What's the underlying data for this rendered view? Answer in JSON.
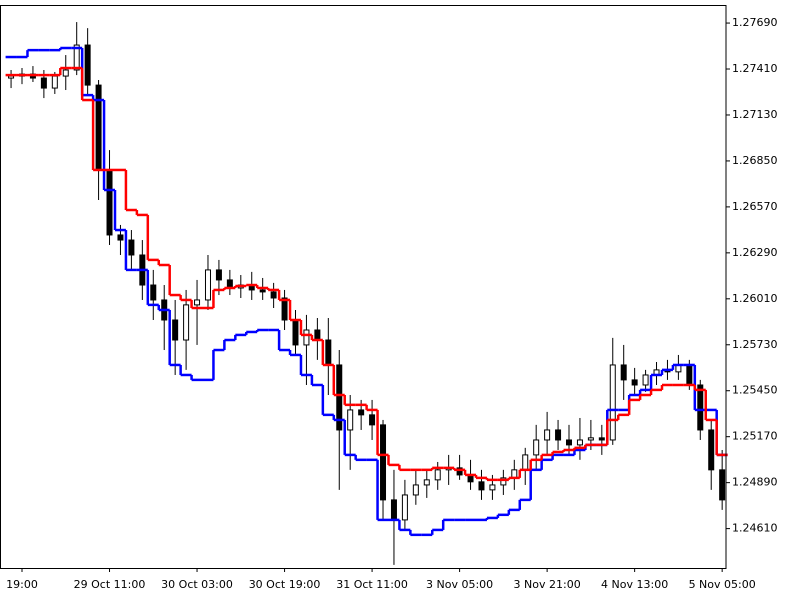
{
  "chart_data": {
    "type": "candlestick",
    "categories": [
      null,
      "19:00",
      null,
      null,
      null,
      null,
      null,
      null,
      null,
      "29 Oct 11:00",
      null,
      null,
      null,
      null,
      null,
      null,
      null,
      "30 Oct 03:00",
      null,
      null,
      null,
      null,
      null,
      null,
      null,
      "30 Oct 19:00",
      null,
      null,
      null,
      null,
      null,
      null,
      null,
      "31 Oct 11:00",
      null,
      null,
      null,
      null,
      null,
      null,
      null,
      "3 Nov 05:00",
      null,
      null,
      null,
      null,
      null,
      null,
      null,
      "3 Nov 21:00",
      null,
      null,
      null,
      null,
      null,
      null,
      null,
      "4 Nov 13:00",
      null,
      null,
      null,
      null,
      null,
      null,
      null,
      "5 Nov 05:00"
    ],
    "open": [
      1.27355,
      1.27367,
      1.27379,
      1.27355,
      1.27294,
      1.27367,
      1.27404,
      1.27556,
      1.27312,
      1.26795,
      1.26399,
      1.26368,
      1.26277,
      1.26094,
      1.26003,
      1.25881,
      1.25759,
      1.25973,
      1.26003,
      1.26186,
      1.26125,
      1.26076,
      1.26094,
      1.26064,
      1.26052,
      1.26015,
      1.25881,
      1.25729,
      1.2582,
      1.25759,
      1.25607,
      1.25211,
      1.25333,
      1.25303,
      1.25242,
      1.24785,
      1.24663,
      1.24815,
      1.24876,
      1.24907,
      1.24968,
      1.2498,
      1.24937,
      1.24895,
      1.24846,
      1.24876,
      1.24919,
      1.24968,
      1.25059,
      1.2515,
      1.25211,
      1.2515,
      1.2512,
      1.2515,
      1.25163,
      1.2515,
      1.25607,
      1.25516,
      1.25485,
      1.25546,
      1.25577,
      1.25565,
      1.25607,
      1.25485,
      1.25211,
      1.24968
    ],
    "high": [
      1.27404,
      1.27416,
      1.27428,
      1.27404,
      1.27392,
      1.27495,
      1.27696,
      1.27659,
      1.27343,
      1.26916,
      1.2646,
      1.26429,
      1.26368,
      1.26186,
      1.26094,
      1.26003,
      1.26064,
      1.26125,
      1.26277,
      1.26247,
      1.26186,
      1.26155,
      1.26174,
      1.26137,
      1.26107,
      1.26064,
      1.25942,
      1.25912,
      1.25893,
      1.25893,
      1.25698,
      1.25424,
      1.25394,
      1.25394,
      1.25272,
      1.24968,
      1.24907,
      1.24968,
      1.24968,
      1.25016,
      1.25059,
      1.25059,
      1.25029,
      1.24968,
      1.24937,
      1.24968,
      1.25029,
      1.25102,
      1.25242,
      1.25321,
      1.25272,
      1.25242,
      1.25284,
      1.25272,
      1.25242,
      1.25772,
      1.25729,
      1.25589,
      1.25577,
      1.25625,
      1.25638,
      1.25668,
      1.25638,
      1.25516,
      1.25272,
      1.25089
    ],
    "low": [
      1.27294,
      1.27318,
      1.27331,
      1.27233,
      1.27258,
      1.27282,
      1.27373,
      1.27251,
      1.26612,
      1.26338,
      1.26277,
      1.26186,
      1.26003,
      1.25881,
      1.25698,
      1.25546,
      1.25577,
      1.25729,
      1.25942,
      1.26033,
      1.26033,
      1.26015,
      1.26003,
      1.26003,
      1.25954,
      1.2582,
      1.25668,
      1.25485,
      1.25638,
      1.25424,
      1.24846,
      1.24968,
      1.25211,
      1.2515,
      1.24663,
      1.24389,
      1.24602,
      1.24755,
      1.24797,
      1.24846,
      1.24876,
      1.24907,
      1.24846,
      1.24785,
      1.24785,
      1.24815,
      1.24846,
      1.24876,
      1.24968,
      1.25059,
      1.25089,
      1.25059,
      1.25029,
      1.25089,
      1.25059,
      1.2512,
      1.25394,
      1.25424,
      1.25443,
      1.25485,
      1.25516,
      1.25516,
      1.25455,
      1.2515,
      1.24846,
      1.24724
    ],
    "close": [
      1.27367,
      1.27379,
      1.27355,
      1.27294,
      1.27367,
      1.27404,
      1.27556,
      1.27312,
      1.26795,
      1.26399,
      1.26368,
      1.26277,
      1.26094,
      1.26003,
      1.25881,
      1.25759,
      1.25973,
      1.26003,
      1.26186,
      1.26125,
      1.26076,
      1.26094,
      1.26064,
      1.26052,
      1.26015,
      1.25881,
      1.25729,
      1.2582,
      1.25759,
      1.25607,
      1.25211,
      1.25333,
      1.25303,
      1.25242,
      1.24785,
      1.24663,
      1.24815,
      1.24876,
      1.24907,
      1.24968,
      1.2498,
      1.24937,
      1.24895,
      1.24846,
      1.24876,
      1.24919,
      1.24968,
      1.25059,
      1.2515,
      1.25211,
      1.2515,
      1.2512,
      1.2515,
      1.25163,
      1.2515,
      1.25607,
      1.25516,
      1.25485,
      1.25546,
      1.25577,
      1.25565,
      1.25607,
      1.25485,
      1.25211,
      1.24968,
      1.24785
    ],
    "lines": [
      {
        "color": "#0000ff",
        "values": [
          1.27483,
          1.27483,
          1.27525,
          1.27525,
          1.27525,
          1.27538,
          1.27538,
          1.27251,
          1.27221,
          1.26673,
          1.26429,
          1.26186,
          1.26186,
          1.25973,
          1.25942,
          1.25607,
          1.25546,
          1.25516,
          1.25516,
          1.25698,
          1.25759,
          1.2579,
          1.25808,
          1.2582,
          1.2582,
          1.25698,
          1.25668,
          1.25546,
          1.25485,
          1.25303,
          1.25272,
          1.25059,
          1.25029,
          1.25029,
          1.24663,
          1.24663,
          1.24602,
          1.24572,
          1.24572,
          1.24602,
          1.24663,
          1.24663,
          1.24663,
          1.24663,
          1.24675,
          1.24694,
          1.24724,
          1.24785,
          1.24968,
          1.25029,
          1.25059,
          1.25059,
          1.25089,
          1.2512,
          1.2512,
          1.25333,
          1.25333,
          1.25424,
          1.25455,
          1.25546,
          1.25577,
          1.25607,
          1.25607,
          1.25333,
          1.25333,
          1.25059
        ]
      },
      {
        "color": "#ff0000",
        "values": [
          1.27373,
          1.27373,
          1.27373,
          1.27373,
          1.27373,
          1.27416,
          1.27416,
          1.27221,
          1.26795,
          1.26795,
          1.26795,
          1.26551,
          1.26521,
          1.26247,
          1.26216,
          1.26033,
          1.26003,
          1.25954,
          1.25954,
          1.26064,
          1.26076,
          1.26088,
          1.26094,
          1.26076,
          1.26064,
          1.26003,
          1.25881,
          1.2579,
          1.25759,
          1.25607,
          1.25424,
          1.25364,
          1.25364,
          1.25333,
          1.25059,
          1.24998,
          1.24968,
          1.24968,
          1.24968,
          1.2498,
          1.2498,
          1.24968,
          1.24937,
          1.24919,
          1.24907,
          1.24907,
          1.24919,
          1.24968,
          1.25029,
          1.25059,
          1.25077,
          1.25089,
          1.25102,
          1.2512,
          1.2512,
          1.25272,
          1.25303,
          1.25394,
          1.25424,
          1.25455,
          1.25485,
          1.25485,
          1.25485,
          1.25455,
          1.25272,
          1.25059
        ]
      }
    ],
    "ylim": [
      1.2437,
      1.278
    ],
    "yticks": [
      {
        "value": 1.2769,
        "label": "1.27690"
      },
      {
        "value": 1.2741,
        "label": "1.27410"
      },
      {
        "value": 1.2713,
        "label": "1.27130"
      },
      {
        "value": 1.2685,
        "label": "1.26850"
      },
      {
        "value": 1.2657,
        "label": "1.26570"
      },
      {
        "value": 1.2629,
        "label": "1.26290"
      },
      {
        "value": 1.2601,
        "label": "1.26010"
      },
      {
        "value": 1.2573,
        "label": "1.25730"
      },
      {
        "value": 1.2545,
        "label": "1.25450"
      },
      {
        "value": 1.2517,
        "label": "1.25170"
      },
      {
        "value": 1.2489,
        "label": "1.24890"
      },
      {
        "value": 1.2461,
        "label": "1.24610"
      }
    ],
    "up_color": "#ffffff",
    "down_color": "#000000",
    "grid": false
  }
}
